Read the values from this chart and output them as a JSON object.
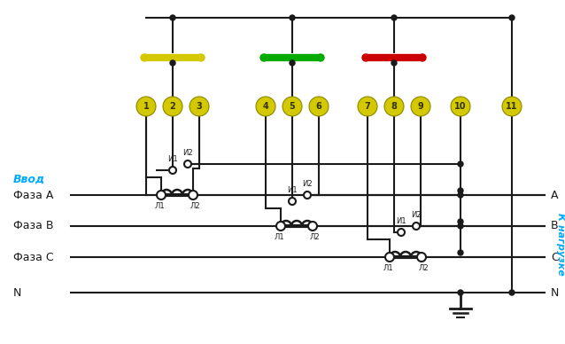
{
  "bg_color": "#f0f0f0",
  "title": "",
  "fig_width": 6.38,
  "fig_height": 3.88,
  "terminal_color": "#d4c800",
  "terminal_numbers": [
    "1",
    "2",
    "3",
    "4",
    "5",
    "6",
    "7",
    "8",
    "9",
    "10",
    "11"
  ],
  "phase_labels_left": [
    "Ввод",
    "Фаза A",
    "Фаза B",
    "Фаза C",
    "N"
  ],
  "phase_labels_right": [
    "A",
    "B",
    "C",
    "N"
  ],
  "vvod_color": "#00aaff",
  "nagruzke_color": "#00aaff",
  "wire_color": "#1a1a1a",
  "fuse_yellow_color": "#d4c800",
  "fuse_green_color": "#00aa00",
  "fuse_red_color": "#cc0000"
}
